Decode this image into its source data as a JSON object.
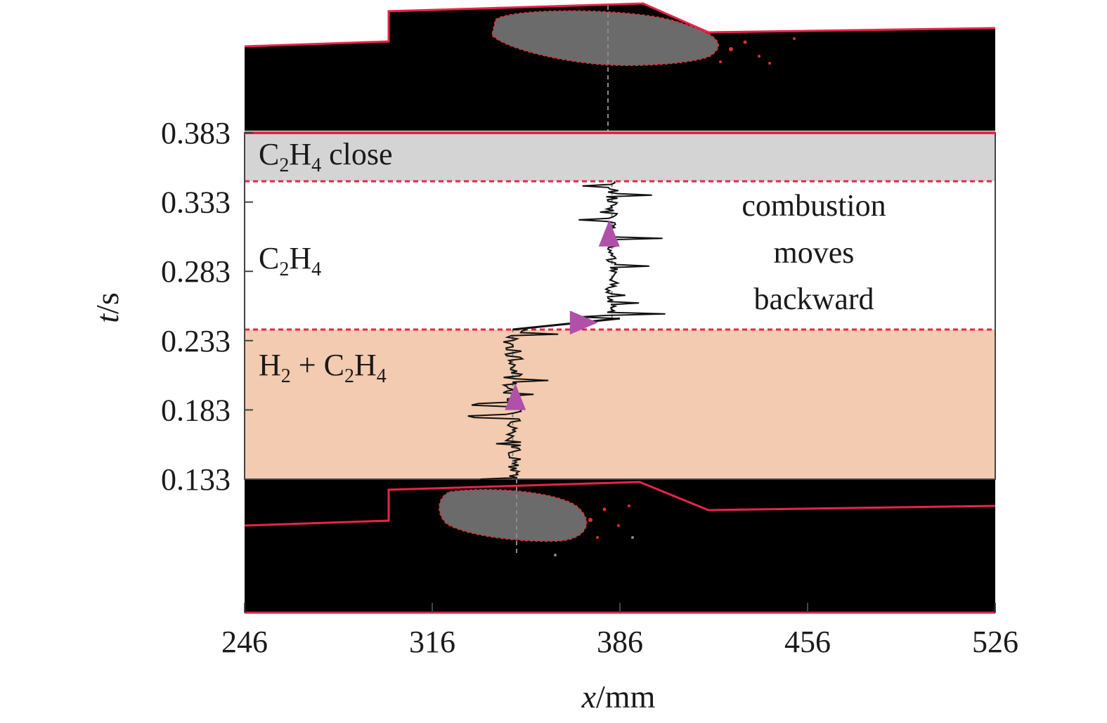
{
  "chart_data": {
    "type": "line",
    "xlabel_var": "x",
    "xlabel_unit": "/mm",
    "ylabel_var": "t",
    "ylabel_unit": "/s",
    "xlim": [
      246,
      526
    ],
    "ylim": [
      0.133,
      0.383
    ],
    "x_ticks": [
      246,
      316,
      386,
      456,
      526
    ],
    "y_ticks": [
      0.133,
      0.183,
      0.233,
      0.283,
      0.333,
      0.383
    ],
    "bands": [
      {
        "name": "H2 + C2H4",
        "from": 0.133,
        "to": 0.241,
        "color": "#f2cbb0"
      },
      {
        "name": "C2H4",
        "from": 0.241,
        "to": 0.348,
        "color": "#ffffff"
      },
      {
        "name": "C2H4 close",
        "from": 0.348,
        "to": 0.383,
        "color": "#d4d4d4"
      }
    ],
    "band_labels": {
      "h2_c2h4": {
        "a": "H",
        "a_sub": "2",
        "mid": " + C",
        "mid_sub": "2",
        "b": "H",
        "b_sub": "4",
        "tail": ""
      },
      "c2h4": {
        "a": "C",
        "a_sub": "2",
        "mid": "H",
        "mid_sub": "4",
        "tail": ""
      },
      "c2h4_close": {
        "a": "C",
        "a_sub": "2",
        "mid": "H",
        "mid_sub": "4",
        "tail": " close"
      }
    },
    "annotation": [
      "combustion",
      "moves",
      "backward"
    ],
    "series": [
      {
        "segment": "H2 + C2H4",
        "x_center": 346,
        "t_from": 0.133,
        "t_to": 0.241
      },
      {
        "segment": "transition",
        "x": [
          346,
          386
        ],
        "t": [
          0.241,
          0.249
        ]
      },
      {
        "segment": "C2H4",
        "x_center": 383,
        "t_from": 0.249,
        "t_to": 0.348
      }
    ],
    "arrows": [
      {
        "x": 347,
        "t": 0.191,
        "direction": "up"
      },
      {
        "x": 371,
        "t": 0.246,
        "direction": "right"
      },
      {
        "x": 382,
        "t": 0.309,
        "direction": "up"
      }
    ],
    "colors": {
      "plot_bg": "#000000",
      "edge": "#e8244a",
      "series": "#111111",
      "arrow": "#b050a8"
    }
  }
}
